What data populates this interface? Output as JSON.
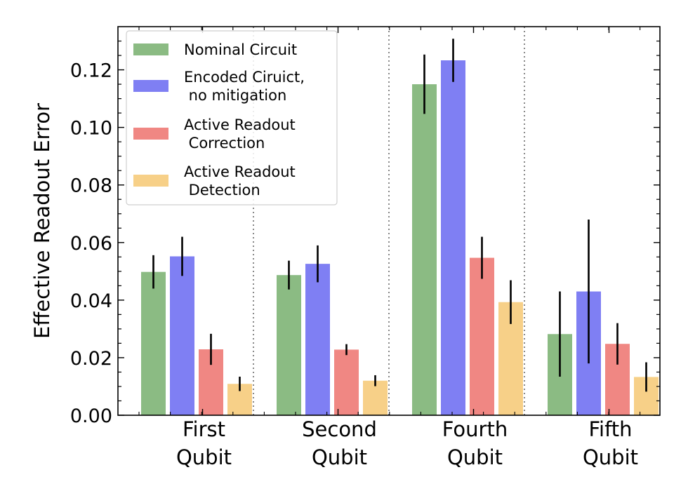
{
  "chart_data": {
    "type": "bar",
    "title": "",
    "xlabel": "",
    "ylabel": "Effective Readout Error",
    "ylim": [
      0,
      0.135
    ],
    "yticks": [
      "0.00",
      "0.02",
      "0.04",
      "0.06",
      "0.08",
      "0.10",
      "0.12"
    ],
    "categories": [
      [
        "First",
        "Qubit"
      ],
      [
        "Second",
        "Qubit"
      ],
      [
        "Fourth",
        "Qubit"
      ],
      [
        "Fifth",
        "Qubit"
      ]
    ],
    "grid": false,
    "legend_position": "top-left",
    "category_separators": "dotted",
    "series": [
      {
        "name": [
          "Nominal Circuit"
        ],
        "color": "#8bbb83",
        "values": [
          0.0498,
          0.0487,
          0.115,
          0.0282
        ],
        "errors": [
          0.0058,
          0.005,
          0.0103,
          0.0148
        ]
      },
      {
        "name": [
          "Encoded Ciruict,",
          " no mitigation"
        ],
        "color": "#7f7ff3",
        "values": [
          0.0552,
          0.0526,
          0.1233,
          0.043
        ],
        "errors": [
          0.0068,
          0.0064,
          0.0075,
          0.025
        ]
      },
      {
        "name": [
          "Active Readout",
          " Correction"
        ],
        "color": "#f08783",
        "values": [
          0.0229,
          0.0228,
          0.0547,
          0.0248
        ],
        "errors": [
          0.0054,
          0.0019,
          0.0073,
          0.0072
        ]
      },
      {
        "name": [
          "Active Readout",
          " Detection"
        ],
        "color": "#f7d088",
        "values": [
          0.0109,
          0.012,
          0.0393,
          0.0133
        ],
        "errors": [
          0.0025,
          0.0019,
          0.0076,
          0.0051
        ]
      }
    ]
  }
}
